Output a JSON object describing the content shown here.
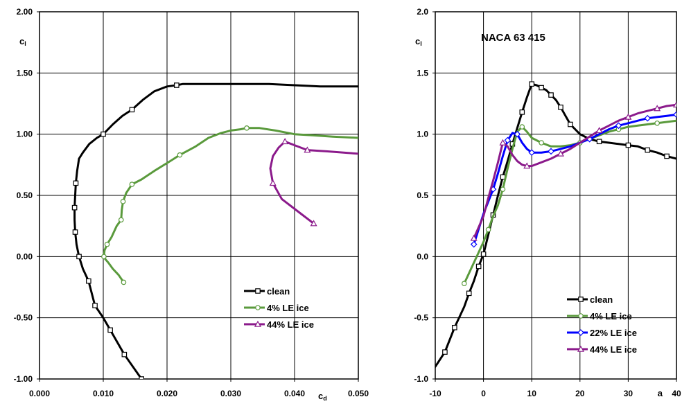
{
  "chart_data": [
    {
      "type": "line",
      "title": "",
      "xlabel": "cd",
      "ylabel": "cl",
      "xlim": [
        0.0,
        0.05
      ],
      "ylim": [
        -1.0,
        2.0
      ],
      "x_ticks": [
        "0.000",
        "0.010",
        "0.020",
        "0.030",
        "0.040",
        "0.050"
      ],
      "y_ticks": [
        "-1.00",
        "-0.50",
        "0.00",
        "0.50",
        "1.00",
        "1.50",
        "2.00"
      ],
      "grid": true,
      "legend_position": "lower-right",
      "series": [
        {
          "name": "clean",
          "color": "#000000",
          "marker": "square",
          "x": [
            0.016,
            0.0133,
            0.0111,
            0.01,
            0.0087,
            0.0077,
            0.0068,
            0.0062,
            0.0058,
            0.0056,
            0.0055,
            0.0055,
            0.0056,
            0.0057,
            0.0059,
            0.0062,
            0.0068,
            0.0078,
            0.009,
            0.01,
            0.0115,
            0.013,
            0.0145,
            0.0162,
            0.018,
            0.02,
            0.0215,
            0.0225,
            0.0245,
            0.028,
            0.032,
            0.036,
            0.04,
            0.044,
            0.05
          ],
          "y": [
            -1.0,
            -0.8,
            -0.6,
            -0.5,
            -0.4,
            -0.2,
            -0.1,
            0.0,
            0.1,
            0.2,
            0.3,
            0.4,
            0.5,
            0.6,
            0.7,
            0.8,
            0.85,
            0.92,
            0.97,
            1.0,
            1.08,
            1.15,
            1.2,
            1.28,
            1.35,
            1.39,
            1.4,
            1.41,
            1.41,
            1.41,
            1.41,
            1.41,
            1.4,
            1.39,
            1.39
          ],
          "markers_at": [
            0,
            1,
            2,
            4,
            5,
            7,
            9,
            11,
            13,
            19,
            22,
            26
          ]
        },
        {
          "name": "4% LE ice",
          "color": "#5a9a3c",
          "marker": "circle",
          "x": [
            0.0132,
            0.0124,
            0.0115,
            0.0108,
            0.0103,
            0.0101,
            0.0102,
            0.0106,
            0.0113,
            0.0121,
            0.0128,
            0.0129,
            0.0131,
            0.0136,
            0.0145,
            0.016,
            0.018,
            0.0205,
            0.022,
            0.0245,
            0.0265,
            0.0285,
            0.03,
            0.0315,
            0.0325,
            0.0345,
            0.037,
            0.04,
            0.043,
            0.046,
            0.05
          ],
          "y": [
            -0.21,
            -0.15,
            -0.1,
            -0.05,
            -0.02,
            0.0,
            0.05,
            0.1,
            0.16,
            0.25,
            0.3,
            0.38,
            0.45,
            0.52,
            0.59,
            0.63,
            0.7,
            0.78,
            0.83,
            0.9,
            0.97,
            1.01,
            1.03,
            1.04,
            1.05,
            1.05,
            1.03,
            1.0,
            0.99,
            0.98,
            0.97
          ],
          "markers_at": [
            0,
            5,
            7,
            10,
            12,
            14,
            18,
            24
          ]
        },
        {
          "name": "44% LE ice",
          "color": "#8b1a8b",
          "marker": "triangle",
          "x": [
            0.043,
            0.041,
            0.038,
            0.0366,
            0.0362,
            0.0366,
            0.0375,
            0.0385,
            0.04,
            0.042,
            0.045,
            0.05
          ],
          "y": [
            0.27,
            0.35,
            0.47,
            0.6,
            0.72,
            0.82,
            0.89,
            0.94,
            0.91,
            0.87,
            0.86,
            0.84
          ],
          "markers_at": [
            0,
            3,
            7,
            9
          ]
        }
      ]
    },
    {
      "type": "line",
      "title": "NACA 63 415",
      "xlabel": "a",
      "ylabel": "cl",
      "xlim": [
        -10,
        40
      ],
      "ylim": [
        -1.0,
        2.0
      ],
      "x_ticks": [
        "-10",
        "0",
        "10",
        "20",
        "30",
        "40"
      ],
      "y_ticks": [
        "-1.0",
        "-0.5",
        "0.0",
        "0.5",
        "1.0",
        "1.5",
        "2.0"
      ],
      "grid": true,
      "legend_position": "lower-right",
      "series": [
        {
          "name": "clean",
          "color": "#000000",
          "marker": "square",
          "x": [
            -10,
            -8,
            -6,
            -4,
            -3,
            -2,
            -1,
            0,
            1,
            2,
            3,
            4,
            5,
            6,
            7,
            8,
            9,
            10,
            11,
            12,
            13,
            14,
            15,
            16,
            17,
            18,
            20,
            22,
            24,
            26,
            28,
            30,
            32,
            34,
            36,
            38,
            40
          ],
          "y": [
            -0.9,
            -0.78,
            -0.58,
            -0.41,
            -0.3,
            -0.2,
            -0.08,
            0.02,
            0.18,
            0.34,
            0.5,
            0.65,
            0.78,
            0.92,
            1.05,
            1.18,
            1.3,
            1.41,
            1.4,
            1.38,
            1.36,
            1.32,
            1.28,
            1.22,
            1.15,
            1.08,
            1.0,
            0.96,
            0.94,
            0.93,
            0.92,
            0.91,
            0.9,
            0.87,
            0.85,
            0.82,
            0.8
          ],
          "markers_at": [
            1,
            2,
            4,
            6,
            7,
            9,
            11,
            13,
            15,
            17,
            19,
            21,
            23,
            25,
            28,
            31,
            33,
            35
          ]
        },
        {
          "name": "4% LE ice",
          "color": "#5a9a3c",
          "marker": "circle",
          "x": [
            -4,
            -2,
            0,
            1,
            2,
            3,
            4,
            5,
            6,
            7,
            8,
            9,
            10,
            12,
            14,
            16,
            18,
            20,
            22,
            24,
            26,
            28,
            30,
            32,
            34,
            36,
            38,
            40
          ],
          "y": [
            -0.22,
            -0.05,
            0.12,
            0.22,
            0.33,
            0.42,
            0.55,
            0.72,
            0.88,
            1.02,
            1.06,
            1.02,
            0.97,
            0.93,
            0.9,
            0.9,
            0.91,
            0.93,
            0.96,
            0.99,
            1.02,
            1.04,
            1.06,
            1.07,
            1.08,
            1.09,
            1.1,
            1.11
          ],
          "markers_at": [
            0,
            3,
            6,
            10,
            13,
            17,
            21,
            25
          ]
        },
        {
          "name": "22% LE ice",
          "color": "#0000ff",
          "marker": "diamond",
          "x": [
            -2,
            0,
            1,
            2,
            3,
            4,
            5,
            6,
            7,
            8,
            9,
            10,
            12,
            14,
            16,
            18,
            20,
            22,
            24,
            26,
            28,
            30,
            32,
            34,
            36,
            38,
            40
          ],
          "y": [
            0.1,
            0.35,
            0.45,
            0.55,
            0.68,
            0.82,
            0.95,
            1.01,
            1.0,
            0.93,
            0.88,
            0.85,
            0.85,
            0.86,
            0.88,
            0.9,
            0.93,
            0.96,
            1.0,
            1.04,
            1.07,
            1.09,
            1.11,
            1.13,
            1.14,
            1.15,
            1.16
          ],
          "markers_at": [
            0,
            3,
            6,
            8,
            11,
            13,
            17,
            20,
            23,
            26
          ]
        },
        {
          "name": "44% LE ice",
          "color": "#8b1a8b",
          "marker": "triangle",
          "x": [
            -2,
            0,
            1,
            2,
            3,
            4,
            5,
            6,
            7,
            8,
            9,
            10,
            12,
            14,
            16,
            18,
            20,
            22,
            24,
            26,
            28,
            30,
            32,
            34,
            36,
            38,
            40
          ],
          "y": [
            0.15,
            0.33,
            0.48,
            0.62,
            0.77,
            0.93,
            0.9,
            0.83,
            0.78,
            0.75,
            0.74,
            0.74,
            0.77,
            0.8,
            0.84,
            0.88,
            0.93,
            0.98,
            1.03,
            1.07,
            1.11,
            1.14,
            1.17,
            1.19,
            1.21,
            1.23,
            1.24
          ],
          "markers_at": [
            0,
            5,
            10,
            14,
            18,
            21,
            24,
            26
          ]
        }
      ]
    }
  ]
}
